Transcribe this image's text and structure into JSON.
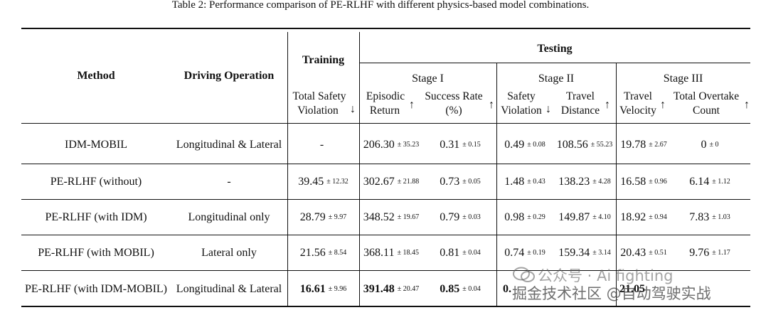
{
  "caption": "Table 2: Performance comparison of PE-RLHF with different physics-based model combinations.",
  "headers": {
    "method": "Method",
    "driving_operation": "Driving Operation",
    "training": "Training",
    "testing": "Testing",
    "stage1": "Stage I",
    "stage2": "Stage II",
    "stage3": "Stage III",
    "c1_l1": "Total Safety",
    "c1_l2": "Violation",
    "c1_arrow": "↓",
    "c2_l1": "Episodic",
    "c2_l2": "Return",
    "c2_arrow": "↑",
    "c3_l1": "Success Rate",
    "c3_l2": "(%)",
    "c3_arrow": "↑",
    "c4_l1": "Safety",
    "c4_l2": "Violation",
    "c4_arrow": "↓",
    "c5_l1": "Travel",
    "c5_l2": "Distance",
    "c5_arrow": "↑",
    "c6_l1": "Travel",
    "c6_l2": "Velocity",
    "c6_arrow": "↑",
    "c7_l1": "Total Overtake",
    "c7_l2": "Count",
    "c7_arrow": "↑"
  },
  "rows": [
    {
      "method": "IDM-MOBIL",
      "op": "Longitudinal & Lateral",
      "tsv": "-",
      "tsv_pm": "",
      "er": "206.30",
      "er_pm": "± 35.23",
      "sr": "0.31",
      "sr_pm": "± 0.15",
      "sv": "0.49",
      "sv_pm": "± 0.08",
      "td": "108.56",
      "td_pm": "± 55.23",
      "tv": "19.78",
      "tv_pm": "± 2.67",
      "oc": "0",
      "oc_pm": "± 0"
    },
    {
      "method": "PE-RLHF (without)",
      "op": "-",
      "tsv": "39.45",
      "tsv_pm": "± 12.32",
      "er": "302.67",
      "er_pm": "± 21.88",
      "sr": "0.73",
      "sr_pm": "± 0.05",
      "sv": "1.48",
      "sv_pm": "± 0.43",
      "td": "138.23",
      "td_pm": "± 4.28",
      "tv": "16.58",
      "tv_pm": "± 0.96",
      "oc": "6.14",
      "oc_pm": "± 1.12"
    },
    {
      "method": "PE-RLHF (with IDM)",
      "op": "Longitudinal only",
      "tsv": "28.79",
      "tsv_pm": "± 9.97",
      "er": "348.52",
      "er_pm": "± 19.67",
      "sr": "0.79",
      "sr_pm": "± 0.03",
      "sv": "0.98",
      "sv_pm": "± 0.29",
      "td": "149.87",
      "td_pm": "± 4.10",
      "tv": "18.92",
      "tv_pm": "± 0.94",
      "oc": "7.83",
      "oc_pm": "± 1.03"
    },
    {
      "method": "PE-RLHF (with MOBIL)",
      "op": "Lateral only",
      "tsv": "21.56",
      "tsv_pm": "± 8.54",
      "er": "368.11",
      "er_pm": "± 18.45",
      "sr": "0.81",
      "sr_pm": "± 0.04",
      "sv": "0.74",
      "sv_pm": "± 0.19",
      "td": "159.34",
      "td_pm": "± 3.14",
      "tv": "20.43",
      "tv_pm": "± 0.51",
      "oc": "9.76",
      "oc_pm": "± 1.17"
    },
    {
      "method": "PE-RLHF (with IDM-MOBIL)",
      "op": "Longitudinal & Lateral",
      "tsv": "16.61",
      "tsv_pm": "± 9.96",
      "er": "391.48",
      "er_pm": "± 20.47",
      "sr": "0.85",
      "sr_pm": "± 0.04",
      "sv": "0.",
      "sv_pm": "",
      "td": "",
      "td_pm": "",
      "tv": "21.05",
      "tv_pm": "",
      "oc": "",
      "oc_pm": ""
    }
  ],
  "watermark": {
    "line1": "公众号 · Ai fighting",
    "line2": "掘金技术社区 @自动驾驶实战"
  }
}
